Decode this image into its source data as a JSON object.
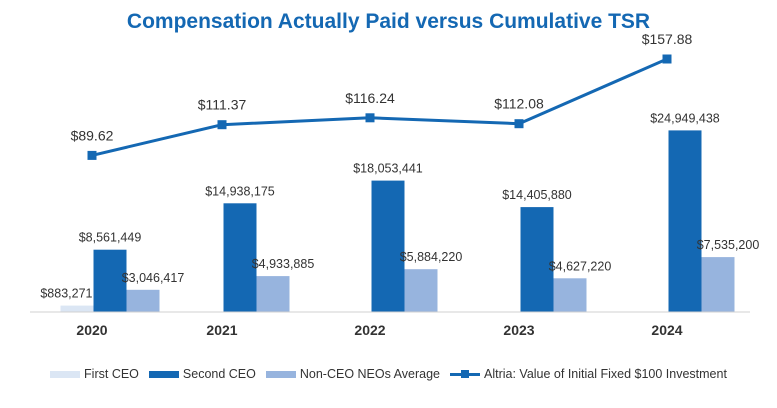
{
  "chart_data": {
    "type": "bar+line",
    "title": "Compensation Actually Paid versus Cumulative TSR",
    "categories": [
      "2020",
      "2021",
      "2022",
      "2023",
      "2024"
    ],
    "series": [
      {
        "name": "First CEO",
        "kind": "bar",
        "color": "#dbe6f4",
        "values": [
          883271,
          null,
          null,
          null,
          null
        ],
        "labels": [
          "$883,271",
          "",
          "",
          "",
          ""
        ]
      },
      {
        "name": "Second CEO",
        "kind": "bar",
        "color": "#1468b3",
        "values": [
          8561449,
          14938175,
          18053441,
          14405880,
          24949438
        ],
        "labels": [
          "$8,561,449",
          "$14,938,175",
          "$18,053,441",
          "$14,405,880",
          "$24,949,438"
        ]
      },
      {
        "name": "Non-CEO NEOs Average",
        "kind": "bar",
        "color": "#97b4de",
        "values": [
          3046417,
          4933885,
          5884220,
          4627220,
          7535200
        ],
        "labels": [
          "$3,046,417",
          "$4,933,885",
          "$5,884,220",
          "$4,627,220",
          "$7,535,200"
        ]
      },
      {
        "name": "Altria: Value of Initial Fixed $100 Investment",
        "kind": "line",
        "color": "#1468b3",
        "values": [
          89.62,
          111.37,
          116.24,
          112.08,
          157.88
        ],
        "labels": [
          "$89.62",
          "$111.37",
          "$116.24",
          "$112.08",
          "$157.88"
        ]
      }
    ],
    "bar_axis_range": [
      0,
      25000000
    ],
    "line_axis_range": [
      0,
      160
    ],
    "gridlines": false,
    "legend_position": "bottom"
  }
}
